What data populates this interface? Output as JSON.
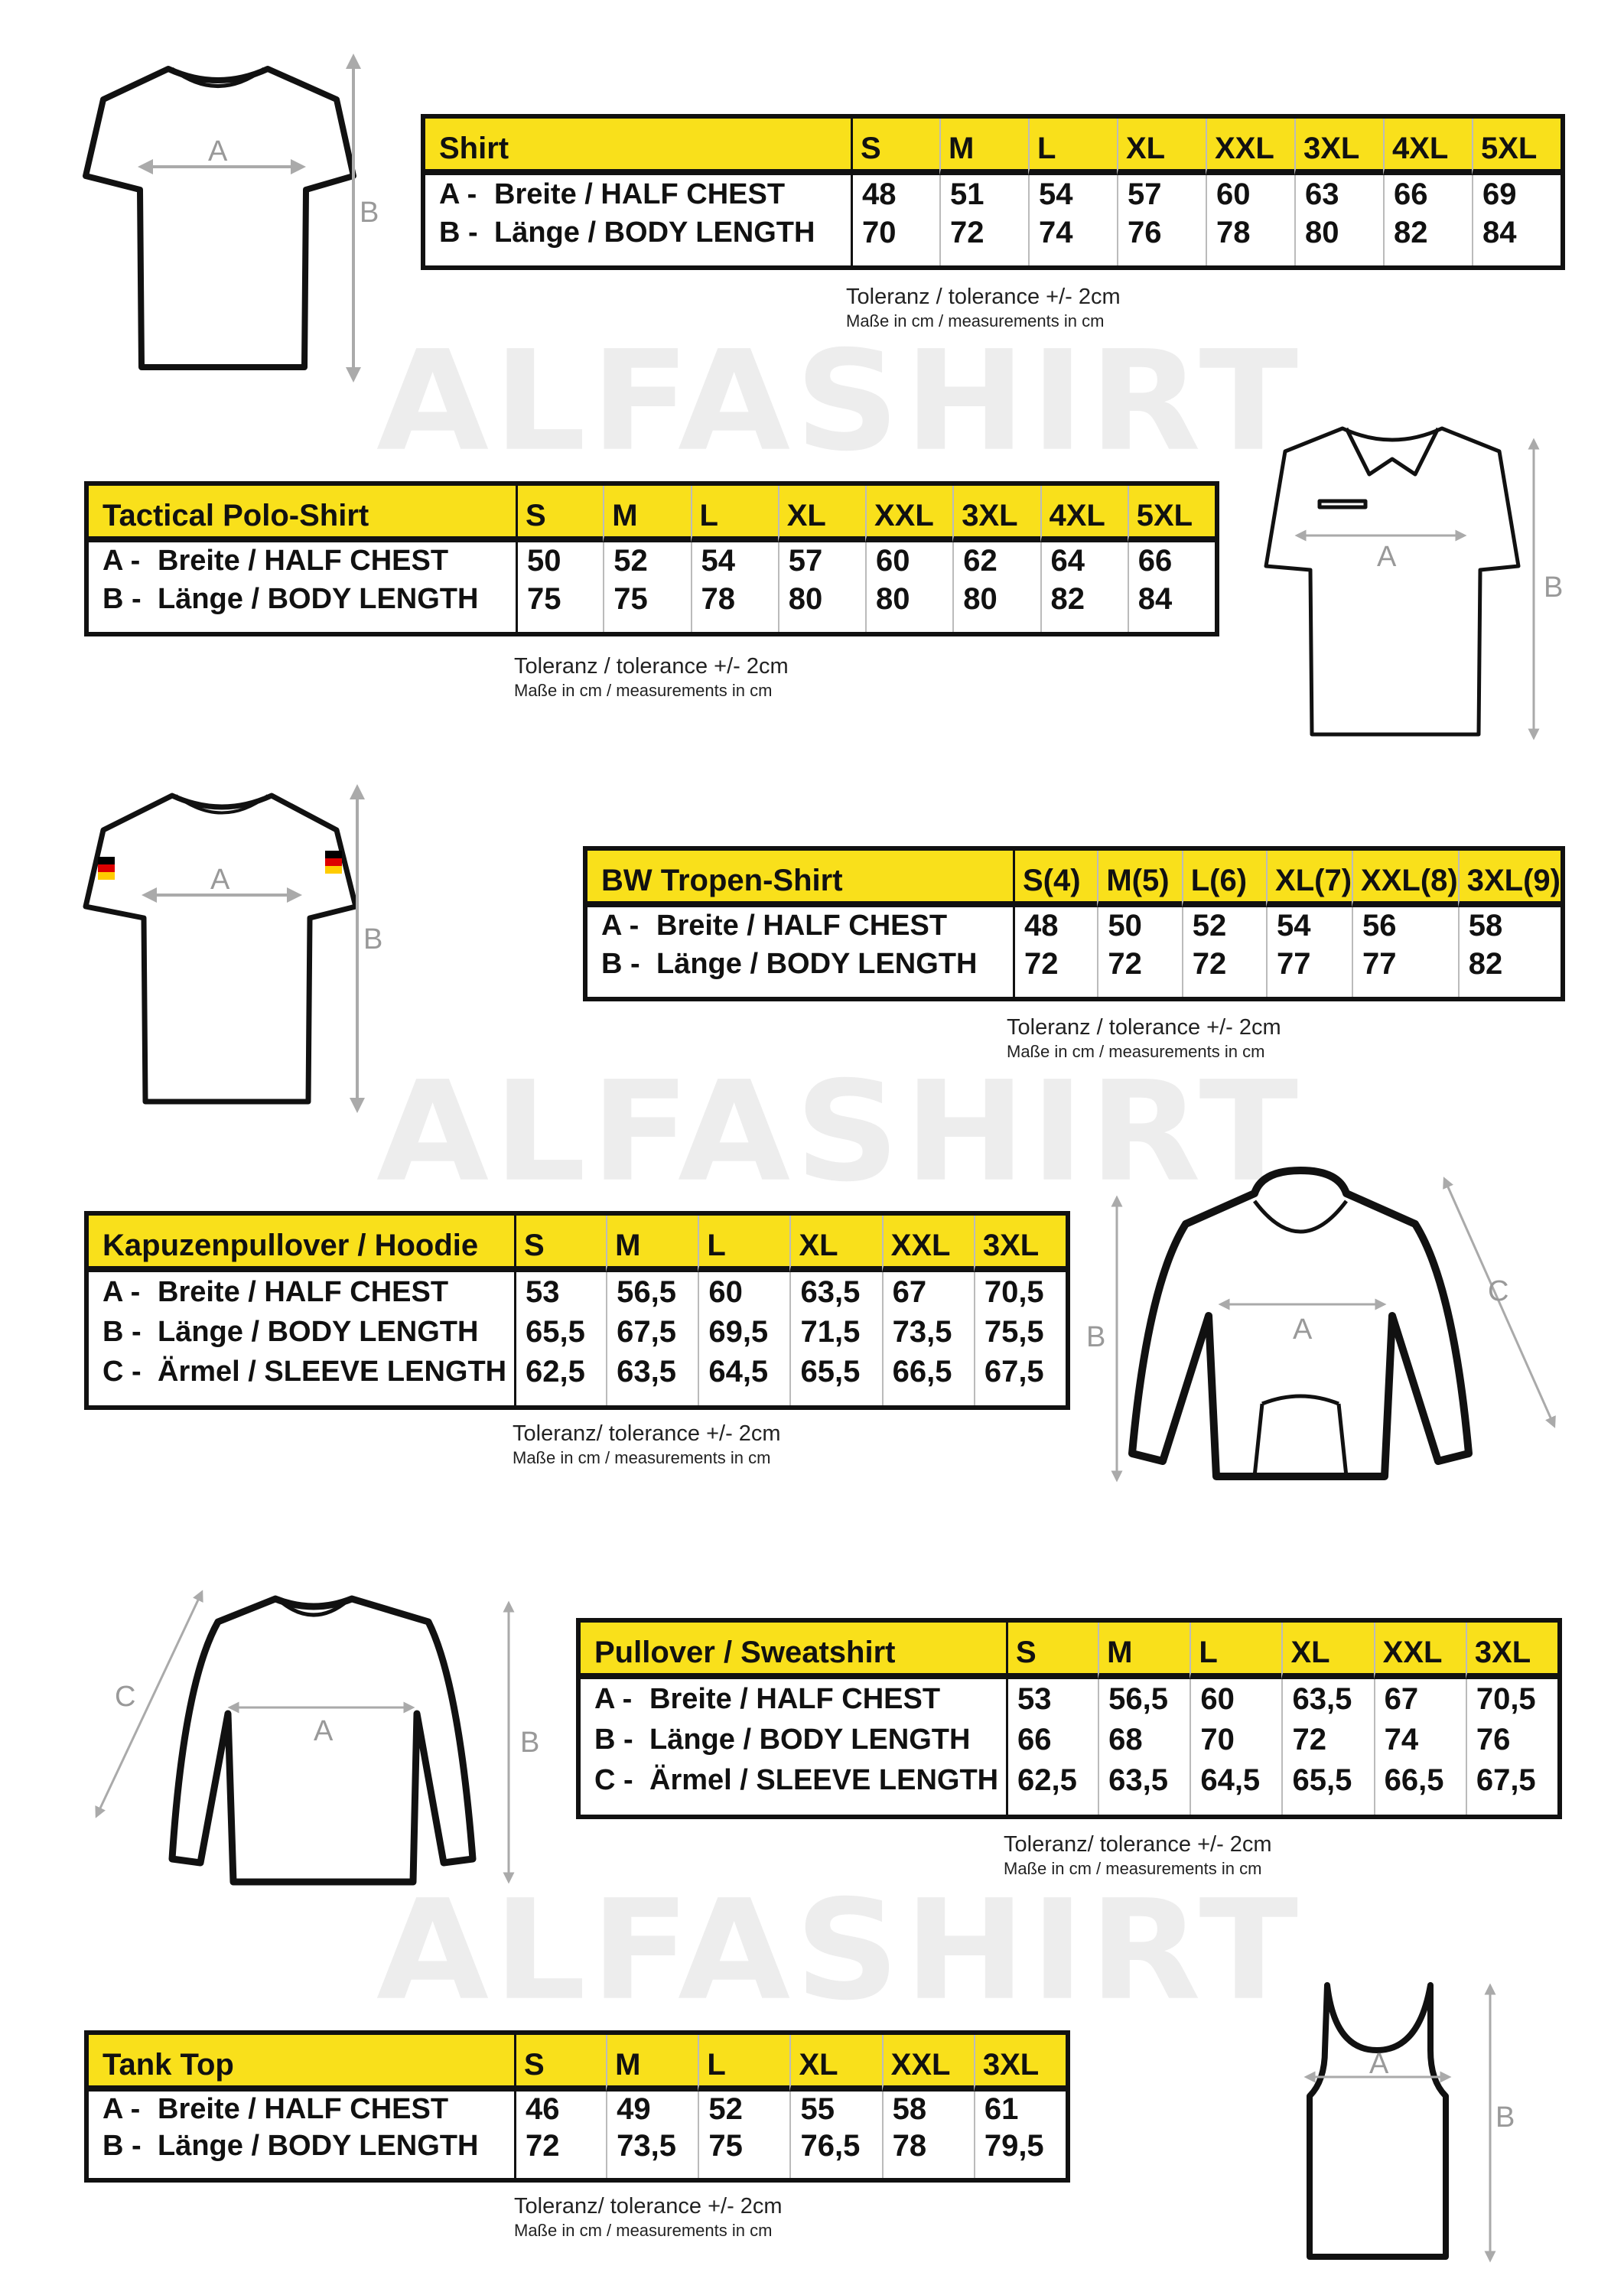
{
  "watermark": "ALFASHIRT",
  "colors": {
    "header_yellow": "#f9e01b",
    "border": "#111111",
    "watermark": "#ededed"
  },
  "dimension_letters": {
    "a": "A",
    "b": "B",
    "c": "C"
  },
  "tables": [
    {
      "title": "Shirt",
      "sizes": [
        "S",
        "M",
        "L",
        "XL",
        "XXL",
        "3XL",
        "4XL",
        "5XL"
      ],
      "rows": [
        {
          "key": "A -",
          "label": "Breite / HALF CHEST",
          "values": [
            "48",
            "51",
            "54",
            "57",
            "60",
            "63",
            "66",
            "69"
          ]
        },
        {
          "key": "B -",
          "label": "Länge / BODY LENGTH",
          "values": [
            "70",
            "72",
            "74",
            "76",
            "78",
            "80",
            "82",
            "84"
          ]
        }
      ],
      "tolerance": "Toleranz / tolerance +/- 2cm",
      "units": "Maße in cm / measurements in cm"
    },
    {
      "title": "Tactical Polo-Shirt",
      "sizes": [
        "S",
        "M",
        "L",
        "XL",
        "XXL",
        "3XL",
        "4XL",
        "5XL"
      ],
      "rows": [
        {
          "key": "A -",
          "label": "Breite / HALF CHEST",
          "values": [
            "50",
            "52",
            "54",
            "57",
            "60",
            "62",
            "64",
            "66"
          ]
        },
        {
          "key": "B -",
          "label": "Länge / BODY LENGTH",
          "values": [
            "75",
            "75",
            "78",
            "80",
            "80",
            "80",
            "82",
            "84"
          ]
        }
      ],
      "tolerance": "Toleranz / tolerance +/- 2cm",
      "units": "Maße in cm / measurements in cm"
    },
    {
      "title": "BW Tropen-Shirt",
      "sizes": [
        "S(4)",
        "M(5)",
        "L(6)",
        "XL(7)",
        "XXL(8)",
        "3XL(9)"
      ],
      "rows": [
        {
          "key": "A -",
          "label": "Breite / HALF CHEST",
          "values": [
            "48",
            "50",
            "52",
            "54",
            "56",
            "58"
          ]
        },
        {
          "key": "B -",
          "label": "Länge / BODY LENGTH",
          "values": [
            "72",
            "72",
            "72",
            "77",
            "77",
            "82"
          ]
        }
      ],
      "tolerance": "Toleranz / tolerance +/- 2cm",
      "units": "Maße in cm / measurements in cm"
    },
    {
      "title": "Kapuzenpullover / Hoodie",
      "sizes": [
        "S",
        "M",
        "L",
        "XL",
        "XXL",
        "3XL"
      ],
      "rows": [
        {
          "key": "A -",
          "label": "Breite / HALF CHEST",
          "values": [
            "53",
            "56,5",
            "60",
            "63,5",
            "67",
            "70,5"
          ]
        },
        {
          "key": "B -",
          "label": "Länge / BODY LENGTH",
          "values": [
            "65,5",
            "67,5",
            "69,5",
            "71,5",
            "73,5",
            "75,5"
          ]
        },
        {
          "key": "C -",
          "label": "Ärmel / SLEEVE LENGTH",
          "values": [
            "62,5",
            "63,5",
            "64,5",
            "65,5",
            "66,5",
            "67,5"
          ]
        }
      ],
      "tolerance": "Toleranz/ tolerance +/- 2cm",
      "units": "Maße in cm / measurements in cm"
    },
    {
      "title": "Pullover / Sweatshirt",
      "sizes": [
        "S",
        "M",
        "L",
        "XL",
        "XXL",
        "3XL"
      ],
      "rows": [
        {
          "key": "A -",
          "label": "Breite / HALF CHEST",
          "values": [
            "53",
            "56,5",
            "60",
            "63,5",
            "67",
            "70,5"
          ]
        },
        {
          "key": "B -",
          "label": "Länge / BODY LENGTH",
          "values": [
            "66",
            "68",
            "70",
            "72",
            "74",
            "76"
          ]
        },
        {
          "key": "C -",
          "label": "Ärmel / SLEEVE LENGTH",
          "values": [
            "62,5",
            "63,5",
            "64,5",
            "65,5",
            "66,5",
            "67,5"
          ]
        }
      ],
      "tolerance": "Toleranz/ tolerance +/- 2cm",
      "units": "Maße in cm / measurements in cm"
    },
    {
      "title": "Tank Top",
      "sizes": [
        "S",
        "M",
        "L",
        "XL",
        "XXL",
        "3XL"
      ],
      "rows": [
        {
          "key": "A -",
          "label": "Breite / HALF CHEST",
          "values": [
            "46",
            "49",
            "52",
            "55",
            "58",
            "61"
          ]
        },
        {
          "key": "B -",
          "label": "Länge / BODY LENGTH",
          "values": [
            "72",
            "73,5",
            "75",
            "76,5",
            "78",
            "79,5"
          ]
        }
      ],
      "tolerance": "Toleranz/ tolerance +/- 2cm",
      "units": "Maße in cm / measurements in cm"
    }
  ]
}
